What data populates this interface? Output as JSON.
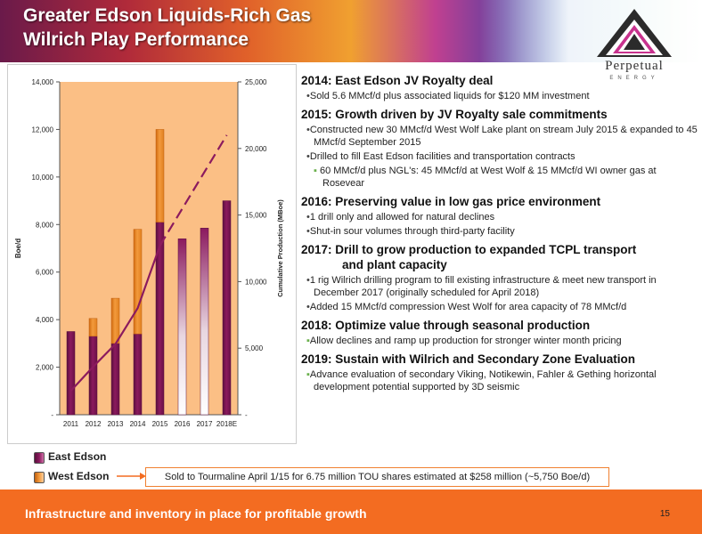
{
  "header": {
    "title_line1": "Greater Edson Liquids-Rich Gas",
    "title_line2": "Wilrich Play Performance"
  },
  "logo": {
    "name": "Perpetual",
    "sub": "ENERGY"
  },
  "chart_data": {
    "type": "bar",
    "stacked": true,
    "categories": [
      "2011",
      "2012",
      "2013",
      "2014",
      "2015",
      "2016",
      "2017",
      "2018E"
    ],
    "series": [
      {
        "name": "East Edson",
        "values": [
          3500,
          3300,
          3000,
          3400,
          8100,
          7400,
          7850,
          9000
        ],
        "color": "#8b1a5e"
      },
      {
        "name": "West Edson",
        "values": [
          0,
          750,
          1900,
          4400,
          3900,
          0,
          0,
          0
        ],
        "color": "#f39a3c"
      }
    ],
    "line": {
      "axis": "right",
      "values": [
        1800,
        3600,
        5300,
        8000,
        12700,
        null,
        null,
        21000
      ],
      "dashed_segment": [
        [
          4,
          12700
        ],
        [
          7,
          21000
        ]
      ],
      "color": "#8b1a5e"
    },
    "ylabel": "Boe/d",
    "ylabel_right": "Cumulative Production (MBoe)",
    "ylim": [
      0,
      14000
    ],
    "ylim_right": [
      0,
      25000
    ],
    "yticks": [
      "-",
      "2,000",
      "4,000",
      "6,000",
      "8,000",
      "10,000",
      "12,000",
      "14,000"
    ],
    "yticks_right": [
      "-",
      "5,000",
      "10,000",
      "15,000",
      "20,000",
      "25,000"
    ],
    "background": "#fbbf85"
  },
  "legend": {
    "east": {
      "label": "East Edson",
      "color": "#8b1a5e"
    },
    "west": {
      "label": "West Edson",
      "color": "#f39a3c"
    }
  },
  "note": "Sold to Tourmaline April 1/15 for 6.75 million TOU shares estimated at $258 million (~5,750 Boe/d)",
  "sections": [
    {
      "head": "2014: East Edson JV Royalty deal",
      "bullets": [
        {
          "mark": "•",
          "text": "Sold 5.6 MMcf/d plus associated liquids for $120 MM investment"
        }
      ]
    },
    {
      "head": "2015: Growth driven by JV Royalty sale commitments",
      "bullets": [
        {
          "mark": "•",
          "text": "Constructed new 30 MMcf/d West Wolf Lake plant on stream July 2015 & expanded to 45 MMcf/d September 2015"
        },
        {
          "mark": "•",
          "text": "Drilled to fill East Edson facilities and transportation contracts"
        },
        {
          "mark": "▪",
          "sub": true,
          "text": "60 MMcf/d plus NGL's: 45 MMcf/d at West Wolf & 15 MMcf/d WI owner gas at Rosevear"
        }
      ]
    },
    {
      "head": "2016: Preserving value in low gas price environment",
      "bullets": [
        {
          "mark": "•",
          "text": "1 drill only and allowed for natural declines"
        },
        {
          "mark": "•",
          "text": "Shut-in sour volumes through third-party facility"
        }
      ]
    },
    {
      "head": "2017: Drill to grow production to expanded TCPL transport",
      "head2": "and plant capacity",
      "bullets": [
        {
          "mark": "•",
          "text": "1 rig Wilrich drilling program to fill existing infrastructure & meet new transport in December 2017 (originally scheduled for April 2018)"
        },
        {
          "mark": "•",
          "text": "Added 15 MMcf/d compression West Wolf for area capacity of 78 MMcf/d"
        }
      ]
    },
    {
      "head": "2018: Optimize value through seasonal production",
      "bullets": [
        {
          "mark": "▪",
          "text": "Allow declines and ramp up production for stronger winter month pricing"
        }
      ]
    },
    {
      "head": "2019: Sustain with Wilrich and Secondary Zone Evaluation",
      "bullets": [
        {
          "mark": "▪",
          "text": "Advance evaluation of  secondary Viking, Notikewin, Fahler & Gething horizontal development potential supported by 3D seismic"
        }
      ]
    }
  ],
  "footer": {
    "text": "Infrastructure and inventory in place for profitable growth",
    "page": "15"
  },
  "colors": {
    "accent_orange": "#f36c21",
    "east": "#8b1a5e",
    "west": "#f39a3c"
  }
}
